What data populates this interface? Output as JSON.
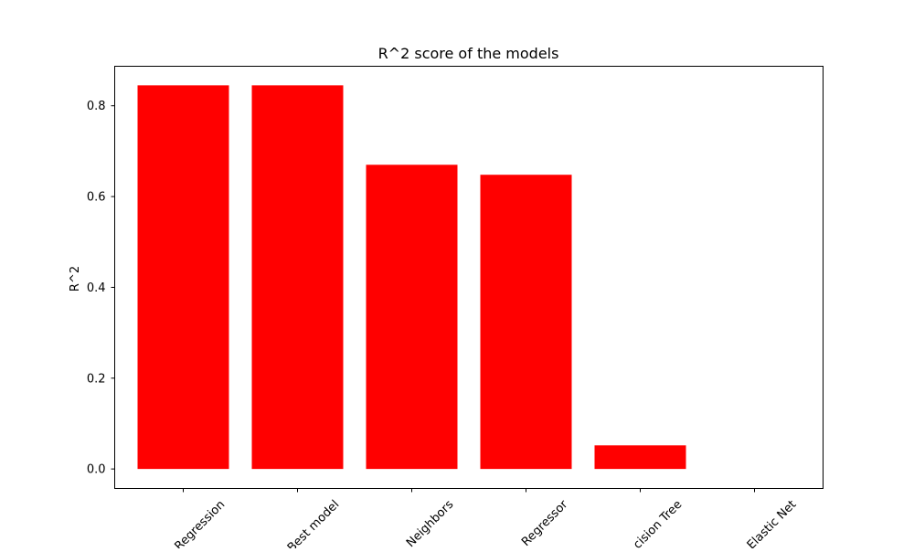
{
  "chart_data": {
    "type": "bar",
    "title": "R^2 score of the models",
    "xlabel": "",
    "ylabel": "R^2",
    "categories": [
      "Regression",
      "Best model",
      "Neighbors",
      "Regressor",
      "cision Tree",
      "Elastic Net"
    ],
    "values": [
      0.845,
      0.845,
      0.67,
      0.648,
      0.052,
      0.0
    ],
    "ylim": [
      -0.043,
      0.887
    ],
    "yticks": [
      0.0,
      0.2,
      0.4,
      0.6,
      0.8
    ],
    "ytick_labels": [
      "0.0",
      "0.2",
      "0.4",
      "0.6",
      "0.8"
    ],
    "bar_color": "#ff0000",
    "grid": false,
    "legend": "none"
  }
}
